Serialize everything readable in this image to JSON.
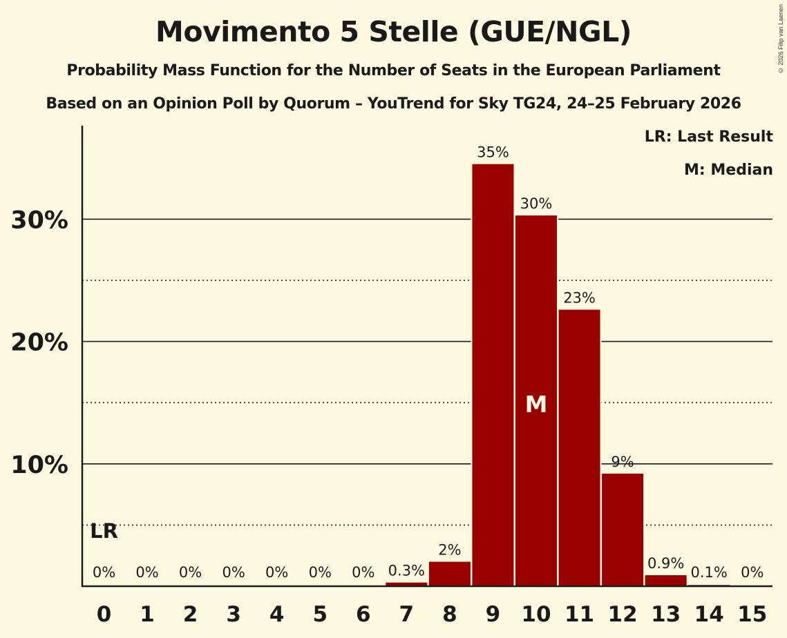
{
  "header": {
    "title": "Movimento 5 Stelle (GUE/NGL)",
    "subtitle": "Probability Mass Function for the Number of Seats in the European Parliament",
    "source_line": "Based on an Opinion Poll by Quorum – YouTrend for Sky TG24, 24–25 February 2026",
    "copyright": "© 2026 Filip van Laenen"
  },
  "legend": {
    "last_result": "LR: Last Result",
    "median": "M: Median"
  },
  "colors": {
    "background": "#fdf9e1",
    "bar": "#990000",
    "text": "#1a1a1a",
    "median_label": "#fdf9e1"
  },
  "chart_data": {
    "type": "bar",
    "title": "Movimento 5 Stelle (GUE/NGL)",
    "subtitle": "Probability Mass Function for the Number of Seats in the European Parliament",
    "xlabel": "",
    "ylabel": "",
    "categories": [
      "0",
      "1",
      "2",
      "3",
      "4",
      "5",
      "6",
      "7",
      "8",
      "9",
      "10",
      "11",
      "12",
      "13",
      "14",
      "15"
    ],
    "values": [
      0,
      0,
      0,
      0,
      0,
      0,
      0,
      0.3,
      2.0,
      34.5,
      30.3,
      22.6,
      9.2,
      0.9,
      0.1,
      0
    ],
    "value_labels": [
      "0%",
      "0%",
      "0%",
      "0%",
      "0%",
      "0%",
      "0%",
      "0.3%",
      "2%",
      "35%",
      "30%",
      "23%",
      "9%",
      "0.9%",
      "0.1%",
      "0%"
    ],
    "ylim": [
      0,
      37.5
    ],
    "yticks": [
      10,
      20,
      30
    ],
    "ytick_labels": [
      "10%",
      "20%",
      "30%"
    ],
    "minor_gridlines": [
      5,
      15,
      25
    ],
    "grid": true,
    "last_result": {
      "seats": 0,
      "label": "LR"
    },
    "median": {
      "seats": 10,
      "label": "M"
    },
    "legend_position": "top-right"
  }
}
